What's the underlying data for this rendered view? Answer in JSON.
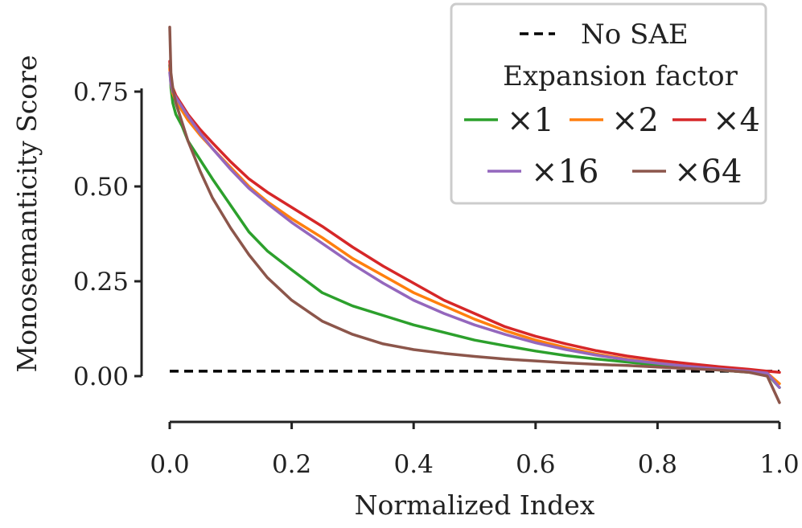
{
  "chart_data": {
    "type": "line",
    "xlabel": "Normalized Index",
    "ylabel": "Monosemanticity Score",
    "xlim": [
      0.0,
      1.0
    ],
    "ylim": [
      -0.08,
      0.93
    ],
    "x_ticks": [
      "0.0",
      "0.2",
      "0.4",
      "0.6",
      "0.8",
      "1.0"
    ],
    "y_ticks": [
      "0.00",
      "0.25",
      "0.50",
      "0.75"
    ],
    "grid": false,
    "legend": {
      "placement": "top-right",
      "baseline_label": "No SAE",
      "title": "Expansion factor"
    },
    "baseline": {
      "name": "No SAE",
      "style": "dashed",
      "color": "#000000",
      "x": [
        0.0,
        1.0
      ],
      "y": [
        0.013,
        0.013
      ]
    },
    "series": [
      {
        "name": "×1",
        "color": "#2ca02c",
        "x": [
          0.0,
          0.002,
          0.005,
          0.01,
          0.02,
          0.03,
          0.05,
          0.07,
          0.1,
          0.13,
          0.16,
          0.2,
          0.25,
          0.3,
          0.35,
          0.4,
          0.45,
          0.5,
          0.55,
          0.6,
          0.65,
          0.7,
          0.75,
          0.8,
          0.85,
          0.9,
          0.95,
          0.98,
          1.0
        ],
        "y": [
          0.82,
          0.76,
          0.72,
          0.69,
          0.66,
          0.62,
          0.57,
          0.52,
          0.45,
          0.38,
          0.33,
          0.28,
          0.22,
          0.185,
          0.16,
          0.135,
          0.115,
          0.095,
          0.08,
          0.066,
          0.054,
          0.045,
          0.037,
          0.029,
          0.022,
          0.016,
          0.01,
          0.005,
          -0.03
        ]
      },
      {
        "name": "×2",
        "color": "#ff7f0e",
        "x": [
          0.0,
          0.002,
          0.005,
          0.01,
          0.02,
          0.03,
          0.05,
          0.07,
          0.1,
          0.13,
          0.16,
          0.2,
          0.25,
          0.3,
          0.35,
          0.4,
          0.45,
          0.5,
          0.55,
          0.6,
          0.65,
          0.7,
          0.75,
          0.8,
          0.85,
          0.9,
          0.95,
          0.98,
          1.0
        ],
        "y": [
          0.81,
          0.77,
          0.745,
          0.725,
          0.7,
          0.675,
          0.635,
          0.6,
          0.55,
          0.5,
          0.46,
          0.415,
          0.365,
          0.31,
          0.265,
          0.22,
          0.185,
          0.15,
          0.12,
          0.095,
          0.075,
          0.058,
          0.045,
          0.035,
          0.026,
          0.019,
          0.013,
          0.008,
          -0.02
        ]
      },
      {
        "name": "×4",
        "color": "#d62728",
        "x": [
          0.0,
          0.002,
          0.005,
          0.01,
          0.02,
          0.03,
          0.05,
          0.07,
          0.1,
          0.13,
          0.16,
          0.2,
          0.25,
          0.3,
          0.35,
          0.4,
          0.45,
          0.5,
          0.55,
          0.6,
          0.65,
          0.7,
          0.75,
          0.8,
          0.85,
          0.9,
          0.95,
          0.98,
          1.0
        ],
        "y": [
          0.83,
          0.785,
          0.76,
          0.74,
          0.715,
          0.69,
          0.65,
          0.615,
          0.565,
          0.52,
          0.485,
          0.445,
          0.395,
          0.34,
          0.29,
          0.245,
          0.2,
          0.165,
          0.13,
          0.105,
          0.085,
          0.067,
          0.053,
          0.042,
          0.033,
          0.025,
          0.018,
          0.013,
          0.01
        ]
      },
      {
        "name": "×16",
        "color": "#9467bd",
        "x": [
          0.0,
          0.002,
          0.005,
          0.01,
          0.02,
          0.03,
          0.05,
          0.07,
          0.1,
          0.13,
          0.16,
          0.2,
          0.25,
          0.3,
          0.35,
          0.4,
          0.45,
          0.5,
          0.55,
          0.6,
          0.65,
          0.7,
          0.75,
          0.8,
          0.85,
          0.9,
          0.95,
          0.98,
          1.0
        ],
        "y": [
          0.8,
          0.77,
          0.75,
          0.735,
          0.71,
          0.685,
          0.64,
          0.6,
          0.545,
          0.495,
          0.455,
          0.405,
          0.35,
          0.295,
          0.245,
          0.2,
          0.165,
          0.135,
          0.11,
          0.088,
          0.07,
          0.055,
          0.043,
          0.034,
          0.026,
          0.019,
          0.013,
          0.008,
          -0.03
        ]
      },
      {
        "name": "×64",
        "color": "#8c564b",
        "x": [
          0.0,
          0.002,
          0.005,
          0.01,
          0.02,
          0.03,
          0.05,
          0.07,
          0.1,
          0.13,
          0.16,
          0.2,
          0.25,
          0.3,
          0.35,
          0.4,
          0.45,
          0.5,
          0.55,
          0.6,
          0.65,
          0.7,
          0.75,
          0.8,
          0.85,
          0.9,
          0.95,
          0.98,
          1.0
        ],
        "y": [
          0.92,
          0.8,
          0.76,
          0.72,
          0.67,
          0.62,
          0.54,
          0.47,
          0.39,
          0.32,
          0.26,
          0.2,
          0.145,
          0.11,
          0.085,
          0.07,
          0.06,
          0.052,
          0.045,
          0.04,
          0.035,
          0.031,
          0.028,
          0.024,
          0.02,
          0.016,
          0.01,
          0.0,
          -0.07
        ]
      }
    ]
  }
}
